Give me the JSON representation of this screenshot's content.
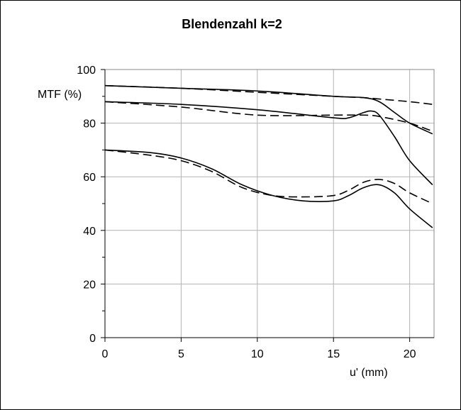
{
  "chart_data": {
    "type": "line",
    "title": "Blendenzahl k=2",
    "xlabel": "u' (mm)",
    "ylabel": "MTF  (%)",
    "xlim": [
      0,
      21.6
    ],
    "ylim": [
      0,
      100
    ],
    "xticks": [
      0,
      5,
      10,
      15,
      20
    ],
    "yticks": [
      0,
      20,
      40,
      60,
      80,
      100
    ],
    "grid": true,
    "series": [
      {
        "style": "solid",
        "x": [
          0,
          5,
          10,
          15,
          17,
          18,
          19,
          20,
          21.5
        ],
        "y": [
          94,
          93,
          92,
          90,
          89.5,
          88,
          84,
          80,
          76
        ]
      },
      {
        "style": "dashed",
        "x": [
          0,
          5,
          10,
          15,
          17,
          18,
          20,
          21.5
        ],
        "y": [
          94,
          93,
          91.5,
          90,
          89.5,
          89,
          88,
          87
        ]
      },
      {
        "style": "solid",
        "x": [
          0,
          5,
          10,
          15,
          16,
          17,
          17.5,
          18,
          19,
          20,
          21.5
        ],
        "y": [
          88,
          87,
          85,
          82,
          82,
          84,
          84.5,
          83,
          75,
          66,
          57
        ]
      },
      {
        "style": "dashed",
        "x": [
          0,
          5,
          10,
          15,
          17,
          18,
          20,
          21.5
        ],
        "y": [
          88,
          86,
          83,
          83,
          83,
          82.5,
          80,
          77
        ]
      },
      {
        "style": "solid",
        "x": [
          0,
          3,
          5,
          7,
          9,
          11,
          13,
          15,
          16,
          17,
          18,
          19,
          20,
          21.5
        ],
        "y": [
          70,
          69,
          67,
          63,
          57,
          53,
          51,
          51,
          53,
          56,
          57,
          54,
          48,
          41
        ]
      },
      {
        "style": "dashed",
        "x": [
          0,
          3,
          5,
          7,
          9,
          11,
          13,
          15,
          16,
          17,
          18,
          19,
          20,
          21.5
        ],
        "y": [
          70,
          68,
          66,
          62,
          56,
          53,
          52.5,
          53,
          55,
          58,
          59,
          57.5,
          54,
          50
        ]
      }
    ]
  }
}
